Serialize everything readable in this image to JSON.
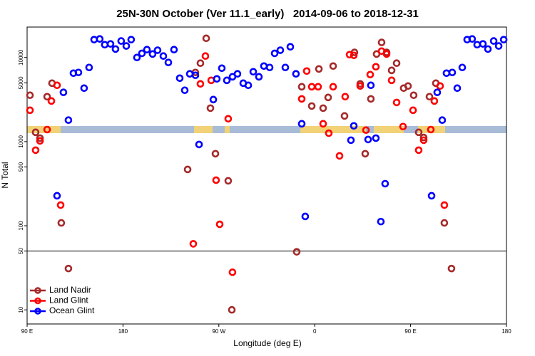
{
  "chart_data": {
    "type": "scatter",
    "title": "25N-30N October (Ver 11.1_early)   2014-09-06 to 2018-12-31",
    "xlabel": "Longitude (deg E)",
    "ylabel": "N Total",
    "xlim": [
      90,
      540
    ],
    "ylim": [
      6.8,
      23000
    ],
    "log_y": true,
    "xticks": [
      {
        "value": 90,
        "label": "90 E"
      },
      180,
      {
        "value": 270,
        "label": "90 W"
      },
      {
        "value": 360,
        "label": "0"
      },
      {
        "value": 450,
        "label": "90 E"
      },
      {
        "value": 540,
        "label": "180"
      }
    ],
    "yticks": [
      10,
      50,
      100,
      500,
      1000,
      5000,
      10000
    ],
    "hline": 50,
    "legend": "lower left",
    "series": [
      {
        "name": "Land Nadir",
        "color": "#a52a2a",
        "x": [
          92.7,
          98.0,
          102.1,
          108.8,
          113.4,
          122.1,
          128.8,
          240.7,
          248.0,
          252.7,
          258.1,
          262.1,
          266.8,
          278.8,
          282.2,
          343.1,
          347.8,
          357.2,
          363.9,
          367.9,
          372.6,
          377.3,
          388.0,
          397.3,
          402.7,
          407.4,
          412.7,
          418.1,
          422.8,
          427.5,
          432.2,
          436.9,
          443.5,
          447.6,
          452.9,
          457.6,
          462.3,
          467.7,
          473.7,
          481.7,
          488.4
        ],
        "values": [
          3560,
          1290,
          1100,
          3420,
          4950,
          108,
          31,
          467,
          6640,
          8560,
          16900,
          2500,
          718,
          342,
          10,
          49,
          4490,
          2650,
          7310,
          2500,
          3350,
          7910,
          2020,
          11500,
          4860,
          718,
          3220,
          11000,
          15100,
          11500,
          7030,
          8560,
          4320,
          4580,
          3560,
          1290,
          1120,
          3420,
          4950,
          108,
          31
        ]
      },
      {
        "name": "Land Glint",
        "color": "#ff0000",
        "x": [
          92.7,
          98.0,
          102.1,
          108.8,
          112.8,
          118.1,
          121.5,
          246.0,
          252.7,
          257.4,
          262.8,
          267.4,
          270.8,
          278.8,
          282.8,
          347.8,
          352.5,
          357.2,
          363.2,
          367.9,
          373.2,
          377.3,
          383.3,
          388.6,
          392.7,
          396.7,
          402.7,
          408.1,
          412.1,
          417.4,
          422.8,
          427.5,
          432.2,
          436.9,
          442.9,
          452.3,
          457.6,
          462.3,
          469.0,
          472.3,
          477.7,
          481.7
        ],
        "values": [
          2360,
          791,
          1020,
          1390,
          3040,
          4670,
          176,
          61,
          4860,
          10400,
          5350,
          348,
          104,
          1870,
          28,
          3220,
          6900,
          4490,
          4490,
          1630,
          1260,
          4490,
          677,
          3420,
          10800,
          10600,
          4580,
          1370,
          6260,
          7760,
          11900,
          11000,
          5350,
          2920,
          1510,
          2360,
          791,
          1040,
          1390,
          3040,
          4580,
          176
        ]
      },
      {
        "name": "Ocean Glint",
        "color": "#0000ff",
        "x": [
          118.1,
          124.1,
          128.8,
          133.5,
          138.2,
          143.5,
          148.2,
          152.9,
          158.2,
          162.9,
          168.3,
          173.0,
          178.3,
          183.1,
          187.7,
          193.1,
          197.8,
          202.5,
          207.8,
          212.5,
          217.9,
          222.6,
          227.9,
          233.3,
          238.0,
          242.7,
          248.0,
          251.4,
          264.8,
          268.1,
          272.8,
          277.5,
          282.8,
          287.5,
          292.9,
          297.6,
          302.3,
          307.6,
          312.3,
          317.7,
          322.4,
          327.7,
          332.4,
          337.1,
          342.4,
          347.8,
          351.1,
          394.0,
          396.7,
          410.1,
          412.7,
          417.4,
          422.1,
          426.1,
          469.7,
          475.0,
          479.7,
          483.7,
          489.1,
          493.8,
          498.5,
          503.1,
          507.8,
          512.5,
          517.9,
          522.6,
          528.0,
          532.7,
          537.4
        ],
        "values": [
          227,
          3850,
          1800,
          6510,
          6640,
          4320,
          7610,
          16300,
          16600,
          14200,
          14500,
          12600,
          15700,
          13700,
          16300,
          10000,
          11200,
          12400,
          11000,
          12200,
          10400,
          8730,
          12400,
          5680,
          4080,
          6390,
          6140,
          925,
          3160,
          5570,
          7460,
          5350,
          5900,
          6390,
          4950,
          4670,
          6770,
          5900,
          7910,
          7610,
          11200,
          12200,
          7610,
          13400,
          6390,
          1630,
          129,
          1040,
          1540,
          1060,
          4670,
          1100,
          112,
          316,
          227,
          3850,
          1800,
          6510,
          6640,
          4320,
          7610,
          16300,
          16600,
          14200,
          14500,
          12600,
          15700,
          13700,
          16300
        ]
      }
    ]
  }
}
